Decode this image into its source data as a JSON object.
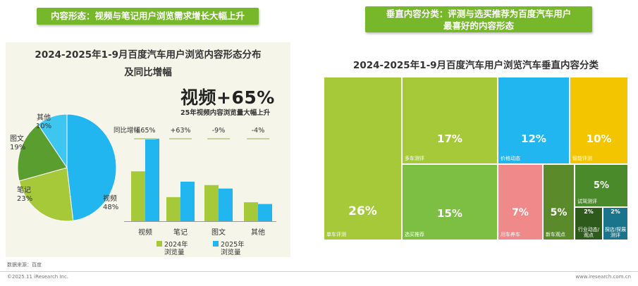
{
  "badges": {
    "left": "内容形态：视频与笔记用户浏览需求增长大幅上升",
    "right_line1": "垂直内容分类：评测与选买推荐为百度汽车用户",
    "right_line2": "最喜好的内容形态"
  },
  "highlight": {
    "big": "视频+65%",
    "sub": "25年视频内容浏览量大幅上升"
  },
  "source": "数据来源：百度",
  "footer": {
    "copyright": "©2025.11 iResearch Inc.",
    "site": "www.iresearch.com.cn"
  },
  "colors": {
    "green_badge": "#76b82a",
    "light_green": "#a6c93a",
    "blue": "#21b6ef",
    "dark_green": "#5a9e2f"
  },
  "chart_data": [
    {
      "type": "pie",
      "title_line1": "2024-2025年1-9月百度汽车用户浏览内容形态分布",
      "title_line2": "及同比增幅",
      "slices": [
        {
          "name": "视频",
          "pct_label": "48%",
          "value": 48,
          "color": "#21b6ef"
        },
        {
          "name": "笔记",
          "pct_label": "23%",
          "value": 23,
          "color": "#a6c93a"
        },
        {
          "name": "图文",
          "pct_label": "19%",
          "value": 19,
          "color": "#5a9e2f"
        },
        {
          "name": "其他",
          "pct_label": "10%",
          "value": 10,
          "color": "#3cc6f0"
        }
      ]
    },
    {
      "type": "bar",
      "yoy_label": "同比增幅",
      "categories": [
        "视频",
        "笔记",
        "图文",
        "其他"
      ],
      "yoy": [
        "+65%",
        "+63%",
        "-9%",
        "-4%"
      ],
      "series": [
        {
          "name": "2024年浏览量",
          "name_line1": "2024年",
          "name_line2": "浏览量",
          "color": "#a6c93a",
          "values": [
            29,
            14,
            21,
            11
          ]
        },
        {
          "name": "2025年浏览量",
          "name_line1": "2025年",
          "name_line2": "浏览量",
          "color": "#21b6ef",
          "values": [
            48,
            23,
            19,
            10
          ]
        }
      ],
      "ylim": [
        0,
        50
      ]
    },
    {
      "type": "treemap",
      "title": "2024-2025年1-9月百度汽车用户浏览汽车垂直内容分类",
      "items": [
        {
          "name": "单车评测",
          "pct": "26%",
          "value": 26,
          "color": "#a6c93a"
        },
        {
          "name": "多车测评",
          "pct": "17%",
          "value": 17,
          "color": "#a6c93a"
        },
        {
          "name": "选买推荐",
          "pct": "15%",
          "value": 15,
          "color": "#7dbf43"
        },
        {
          "name": "价格动态",
          "pct": "12%",
          "value": 12,
          "color": "#21b6ef"
        },
        {
          "name": "智能评测",
          "pct": "10%",
          "value": 10,
          "color": "#f2c500"
        },
        {
          "name": "用车养车",
          "pct": "7%",
          "value": 7,
          "color": "#f08a8a"
        },
        {
          "name": "新车观点",
          "pct": "5%",
          "value": 5,
          "color": "#5a8a2a"
        },
        {
          "name": "试驾测评",
          "pct": "5%",
          "value": 5,
          "color": "#4a8a2a"
        },
        {
          "name": "行业动态/观点",
          "pct": "2%",
          "value": 2,
          "color": "#2e5a1c"
        },
        {
          "name": "探店/探展测评",
          "pct": "2%",
          "value": 2,
          "color": "#19748c"
        }
      ]
    }
  ]
}
